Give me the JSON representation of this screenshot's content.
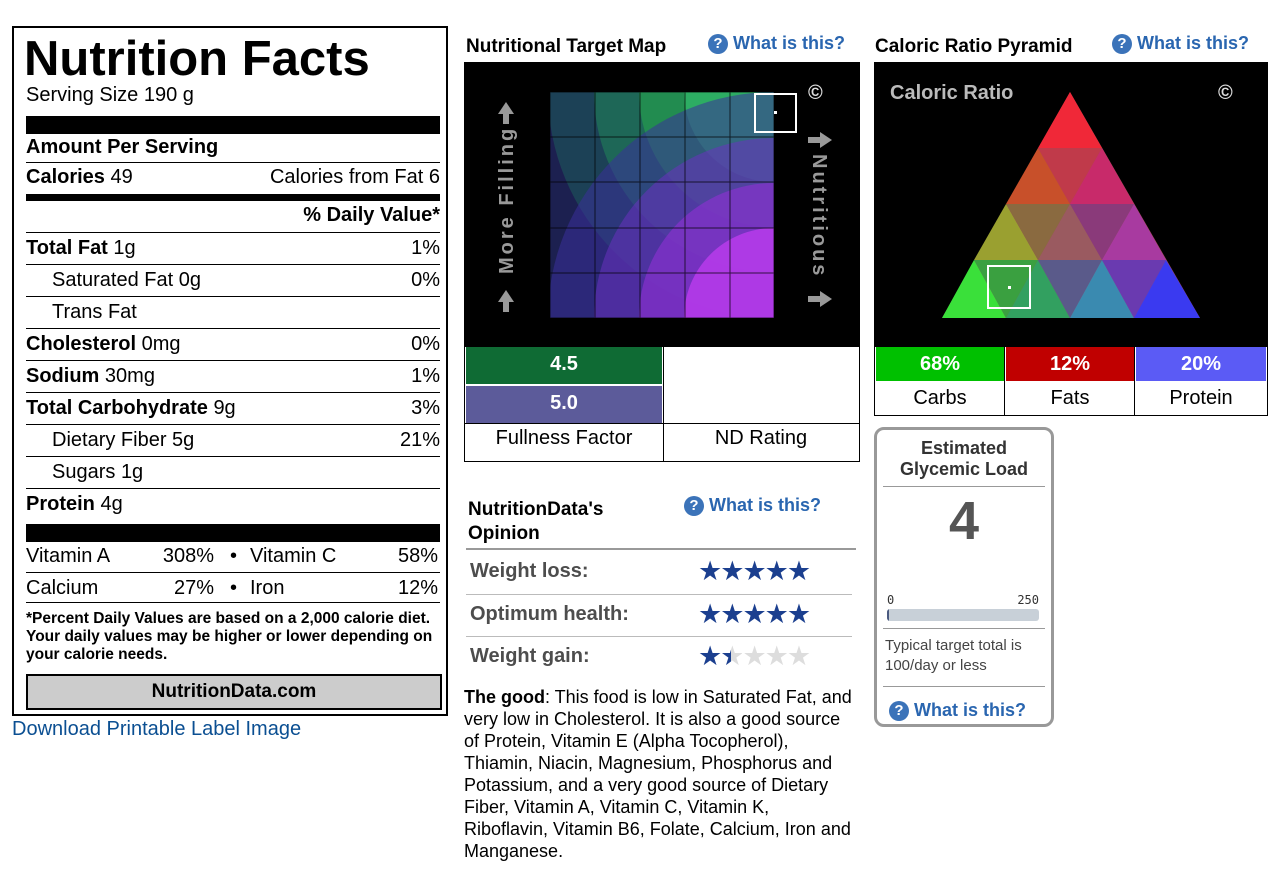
{
  "label": {
    "title": "Nutrition Facts",
    "serving": "Serving Size  190 g",
    "amount_per_serving": "Amount Per Serving",
    "calories_label": "Calories",
    "calories_value": "49",
    "calories_fat_label": "Calories from Fat",
    "calories_fat_value": "6",
    "daily_value_header": "% Daily Value*",
    "rows": [
      {
        "name": "Total Fat",
        "amount": "1g",
        "pct": "1%",
        "bold": true
      },
      {
        "name": "Saturated Fat",
        "amount": "0g",
        "pct": "0%",
        "bold": false
      },
      {
        "name": "Trans Fat",
        "amount": "",
        "pct": "",
        "bold": false
      },
      {
        "name": "Cholesterol",
        "amount": "0mg",
        "pct": "0%",
        "bold": true
      },
      {
        "name": "Sodium",
        "amount": "30mg",
        "pct": "1%",
        "bold": true
      },
      {
        "name": "Total Carbohydrate",
        "amount": "9g",
        "pct": "3%",
        "bold": true
      },
      {
        "name": "Dietary Fiber",
        "amount": "5g",
        "pct": "21%",
        "bold": false
      },
      {
        "name": "Sugars",
        "amount": "1g",
        "pct": "",
        "bold": false
      },
      {
        "name": "Protein",
        "amount": "4g",
        "pct": "",
        "bold": true
      }
    ],
    "vitamins": [
      {
        "name": "Vitamin A",
        "pct": "308%",
        "name2": "Vitamin C",
        "pct2": "58%"
      },
      {
        "name": "Calcium",
        "pct": "27%",
        "name2": "Iron",
        "pct2": "12%"
      }
    ],
    "footnote": "*Percent Daily Values are based on a 2,000 calorie diet. Your daily values may be higher or lower depending on your calorie needs.",
    "brand": "NutritionData.com"
  },
  "download_link": "Download Printable Label Image",
  "target_map": {
    "title": "Nutritional Target Map",
    "what": "What is this?",
    "left_axis": "More Filling",
    "right_axis": "Nutritious",
    "copyright": "©",
    "fullness_value": "4.5",
    "nd_value": "5.0",
    "fullness_label": "Fullness Factor",
    "nd_label": "ND Rating"
  },
  "opinion": {
    "title": "NutritionData's Opinion",
    "what": "What is this?",
    "ratings": [
      {
        "label": "Weight loss:",
        "stars": 5
      },
      {
        "label": "Optimum health:",
        "stars": 5
      },
      {
        "label": "Weight gain:",
        "stars": 1.5
      }
    ],
    "good_label": "The good",
    "good_text": ": This food is low in Saturated Fat, and very low in Cholesterol. It is also a good source of Protein, Vitamin E (Alpha Tocopherol), Thiamin, Niacin, Magnesium, Phosphorus and Potassium, and a very good source of Dietary Fiber, Vitamin A, Vitamin C, Vitamin K, Riboflavin, Vitamin B6, Folate, Calcium, Iron and Manganese."
  },
  "pyramid": {
    "title": "Caloric Ratio Pyramid",
    "what": "What is this?",
    "inner_title": "Caloric Ratio",
    "copyright": "©",
    "carbs_pct": "68%",
    "fats_pct": "12%",
    "protein_pct": "20%",
    "carbs_label": "Carbs",
    "fats_label": "Fats",
    "protein_label": "Protein",
    "colors": {
      "carbs": "#00c000",
      "fats": "#c00000",
      "protein": "#5b5bf5"
    }
  },
  "glycemic": {
    "title": "Estimated Glycemic Load",
    "value": "4",
    "min": "0",
    "max": "250",
    "level": 0.016,
    "note": "Typical target total is 100/day or less",
    "what": "What is this?"
  }
}
